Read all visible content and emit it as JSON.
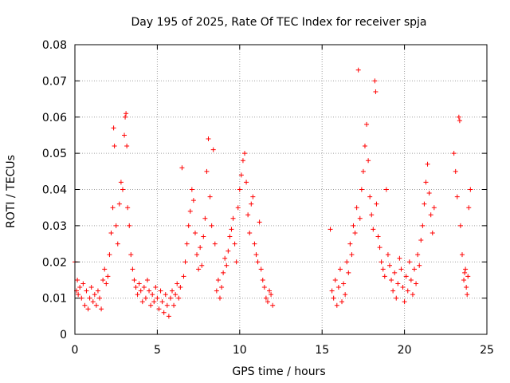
{
  "chart_data": {
    "type": "scatter",
    "title": "Day 195 of 2025, Rate Of TEC Index for receiver spja",
    "xlabel": "GPS time / hours",
    "ylabel": "ROTI / TECUs",
    "xlim": [
      0,
      25
    ],
    "ylim": [
      0,
      0.08
    ],
    "xticks": [
      0,
      5,
      10,
      15,
      20,
      25
    ],
    "xtick_labels": [
      "0",
      "5",
      "10",
      "15",
      "20",
      "25"
    ],
    "yticks": [
      0,
      0.01,
      0.02,
      0.03,
      0.04,
      0.05,
      0.06,
      0.07,
      0.08
    ],
    "ytick_labels": [
      "0",
      "0.01",
      "0.02",
      "0.03",
      "0.04",
      "0.05",
      "0.06",
      "0.07",
      "0.08"
    ],
    "grid": true,
    "marker": "+",
    "color": "#ff0000",
    "series": [
      {
        "name": "ROTI",
        "points": [
          [
            0.0,
            0.02
          ],
          [
            0.1,
            0.012
          ],
          [
            0.15,
            0.015
          ],
          [
            0.2,
            0.011
          ],
          [
            0.3,
            0.013
          ],
          [
            0.4,
            0.01
          ],
          [
            0.5,
            0.014
          ],
          [
            0.6,
            0.008
          ],
          [
            0.7,
            0.012
          ],
          [
            0.8,
            0.007
          ],
          [
            0.9,
            0.01
          ],
          [
            1.0,
            0.013
          ],
          [
            1.1,
            0.009
          ],
          [
            1.2,
            0.011
          ],
          [
            1.3,
            0.008
          ],
          [
            1.4,
            0.012
          ],
          [
            1.5,
            0.01
          ],
          [
            1.6,
            0.007
          ],
          [
            1.7,
            0.015
          ],
          [
            1.8,
            0.018
          ],
          [
            1.9,
            0.014
          ],
          [
            2.0,
            0.016
          ],
          [
            2.1,
            0.022
          ],
          [
            2.2,
            0.028
          ],
          [
            2.3,
            0.035
          ],
          [
            2.35,
            0.057
          ],
          [
            2.4,
            0.052
          ],
          [
            2.5,
            0.03
          ],
          [
            2.6,
            0.025
          ],
          [
            2.7,
            0.036
          ],
          [
            2.8,
            0.042
          ],
          [
            2.9,
            0.04
          ],
          [
            3.0,
            0.055
          ],
          [
            3.05,
            0.06
          ],
          [
            3.1,
            0.061
          ],
          [
            3.15,
            0.052
          ],
          [
            3.2,
            0.035
          ],
          [
            3.3,
            0.03
          ],
          [
            3.4,
            0.022
          ],
          [
            3.5,
            0.018
          ],
          [
            3.6,
            0.015
          ],
          [
            3.7,
            0.013
          ],
          [
            3.8,
            0.011
          ],
          [
            3.9,
            0.014
          ],
          [
            4.0,
            0.012
          ],
          [
            4.1,
            0.009
          ],
          [
            4.2,
            0.013
          ],
          [
            4.3,
            0.01
          ],
          [
            4.4,
            0.015
          ],
          [
            4.5,
            0.012
          ],
          [
            4.6,
            0.008
          ],
          [
            4.7,
            0.011
          ],
          [
            4.8,
            0.009
          ],
          [
            4.9,
            0.013
          ],
          [
            5.0,
            0.01
          ],
          [
            5.1,
            0.007
          ],
          [
            5.2,
            0.012
          ],
          [
            5.3,
            0.009
          ],
          [
            5.4,
            0.006
          ],
          [
            5.5,
            0.011
          ],
          [
            5.6,
            0.008
          ],
          [
            5.7,
            0.005
          ],
          [
            5.8,
            0.01
          ],
          [
            5.9,
            0.012
          ],
          [
            6.0,
            0.008
          ],
          [
            6.1,
            0.011
          ],
          [
            6.2,
            0.014
          ],
          [
            6.3,
            0.01
          ],
          [
            6.4,
            0.013
          ],
          [
            6.5,
            0.046
          ],
          [
            6.6,
            0.016
          ],
          [
            6.7,
            0.02
          ],
          [
            6.8,
            0.025
          ],
          [
            6.9,
            0.03
          ],
          [
            7.0,
            0.034
          ],
          [
            7.1,
            0.04
          ],
          [
            7.2,
            0.037
          ],
          [
            7.3,
            0.028
          ],
          [
            7.4,
            0.022
          ],
          [
            7.5,
            0.018
          ],
          [
            7.6,
            0.024
          ],
          [
            7.7,
            0.019
          ],
          [
            7.8,
            0.027
          ],
          [
            7.9,
            0.032
          ],
          [
            8.0,
            0.045
          ],
          [
            8.1,
            0.054
          ],
          [
            8.2,
            0.038
          ],
          [
            8.3,
            0.03
          ],
          [
            8.4,
            0.051
          ],
          [
            8.5,
            0.025
          ],
          [
            8.6,
            0.012
          ],
          [
            8.7,
            0.015
          ],
          [
            8.8,
            0.01
          ],
          [
            8.9,
            0.013
          ],
          [
            9.0,
            0.017
          ],
          [
            9.1,
            0.021
          ],
          [
            9.2,
            0.019
          ],
          [
            9.3,
            0.023
          ],
          [
            9.4,
            0.027
          ],
          [
            9.5,
            0.029
          ],
          [
            9.6,
            0.032
          ],
          [
            9.7,
            0.025
          ],
          [
            9.8,
            0.02
          ],
          [
            9.9,
            0.035
          ],
          [
            10.0,
            0.04
          ],
          [
            10.1,
            0.044
          ],
          [
            10.2,
            0.048
          ],
          [
            10.3,
            0.05
          ],
          [
            10.4,
            0.042
          ],
          [
            10.5,
            0.033
          ],
          [
            10.6,
            0.028
          ],
          [
            10.7,
            0.036
          ],
          [
            10.8,
            0.038
          ],
          [
            10.9,
            0.025
          ],
          [
            11.0,
            0.022
          ],
          [
            11.1,
            0.02
          ],
          [
            11.2,
            0.031
          ],
          [
            11.3,
            0.018
          ],
          [
            11.4,
            0.015
          ],
          [
            11.5,
            0.013
          ],
          [
            11.6,
            0.01
          ],
          [
            11.7,
            0.009
          ],
          [
            11.8,
            0.012
          ],
          [
            11.9,
            0.011
          ],
          [
            12.0,
            0.008
          ],
          [
            15.5,
            0.029
          ],
          [
            15.6,
            0.012
          ],
          [
            15.7,
            0.01
          ],
          [
            15.8,
            0.015
          ],
          [
            15.9,
            0.008
          ],
          [
            16.0,
            0.013
          ],
          [
            16.1,
            0.018
          ],
          [
            16.2,
            0.009
          ],
          [
            16.3,
            0.014
          ],
          [
            16.4,
            0.011
          ],
          [
            16.5,
            0.02
          ],
          [
            16.6,
            0.017
          ],
          [
            16.7,
            0.025
          ],
          [
            16.8,
            0.022
          ],
          [
            16.9,
            0.03
          ],
          [
            17.0,
            0.028
          ],
          [
            17.1,
            0.035
          ],
          [
            17.2,
            0.073
          ],
          [
            17.3,
            0.032
          ],
          [
            17.4,
            0.04
          ],
          [
            17.5,
            0.045
          ],
          [
            17.6,
            0.052
          ],
          [
            17.7,
            0.058
          ],
          [
            17.8,
            0.048
          ],
          [
            17.9,
            0.038
          ],
          [
            18.0,
            0.033
          ],
          [
            18.1,
            0.029
          ],
          [
            18.2,
            0.07
          ],
          [
            18.25,
            0.067
          ],
          [
            18.3,
            0.036
          ],
          [
            18.4,
            0.027
          ],
          [
            18.5,
            0.024
          ],
          [
            18.6,
            0.02
          ],
          [
            18.7,
            0.018
          ],
          [
            18.8,
            0.016
          ],
          [
            18.9,
            0.04
          ],
          [
            19.0,
            0.022
          ],
          [
            19.1,
            0.019
          ],
          [
            19.2,
            0.015
          ],
          [
            19.3,
            0.012
          ],
          [
            19.4,
            0.017
          ],
          [
            19.5,
            0.01
          ],
          [
            19.6,
            0.014
          ],
          [
            19.7,
            0.021
          ],
          [
            19.8,
            0.018
          ],
          [
            19.9,
            0.013
          ],
          [
            20.0,
            0.009
          ],
          [
            20.1,
            0.016
          ],
          [
            20.2,
            0.012
          ],
          [
            20.3,
            0.02
          ],
          [
            20.4,
            0.015
          ],
          [
            20.5,
            0.011
          ],
          [
            20.6,
            0.018
          ],
          [
            20.7,
            0.014
          ],
          [
            20.8,
            0.022
          ],
          [
            20.9,
            0.019
          ],
          [
            21.0,
            0.026
          ],
          [
            21.1,
            0.03
          ],
          [
            21.2,
            0.036
          ],
          [
            21.3,
            0.042
          ],
          [
            21.4,
            0.047
          ],
          [
            21.5,
            0.039
          ],
          [
            21.6,
            0.033
          ],
          [
            21.7,
            0.028
          ],
          [
            21.8,
            0.035
          ],
          [
            23.0,
            0.05
          ],
          [
            23.1,
            0.045
          ],
          [
            23.2,
            0.038
          ],
          [
            23.3,
            0.06
          ],
          [
            23.35,
            0.059
          ],
          [
            23.4,
            0.03
          ],
          [
            23.5,
            0.022
          ],
          [
            23.6,
            0.015
          ],
          [
            23.7,
            0.018
          ],
          [
            23.8,
            0.011
          ],
          [
            23.9,
            0.035
          ],
          [
            24.0,
            0.04
          ],
          [
            23.85,
            0.016
          ],
          [
            23.75,
            0.013
          ],
          [
            23.65,
            0.017
          ]
        ]
      }
    ]
  }
}
